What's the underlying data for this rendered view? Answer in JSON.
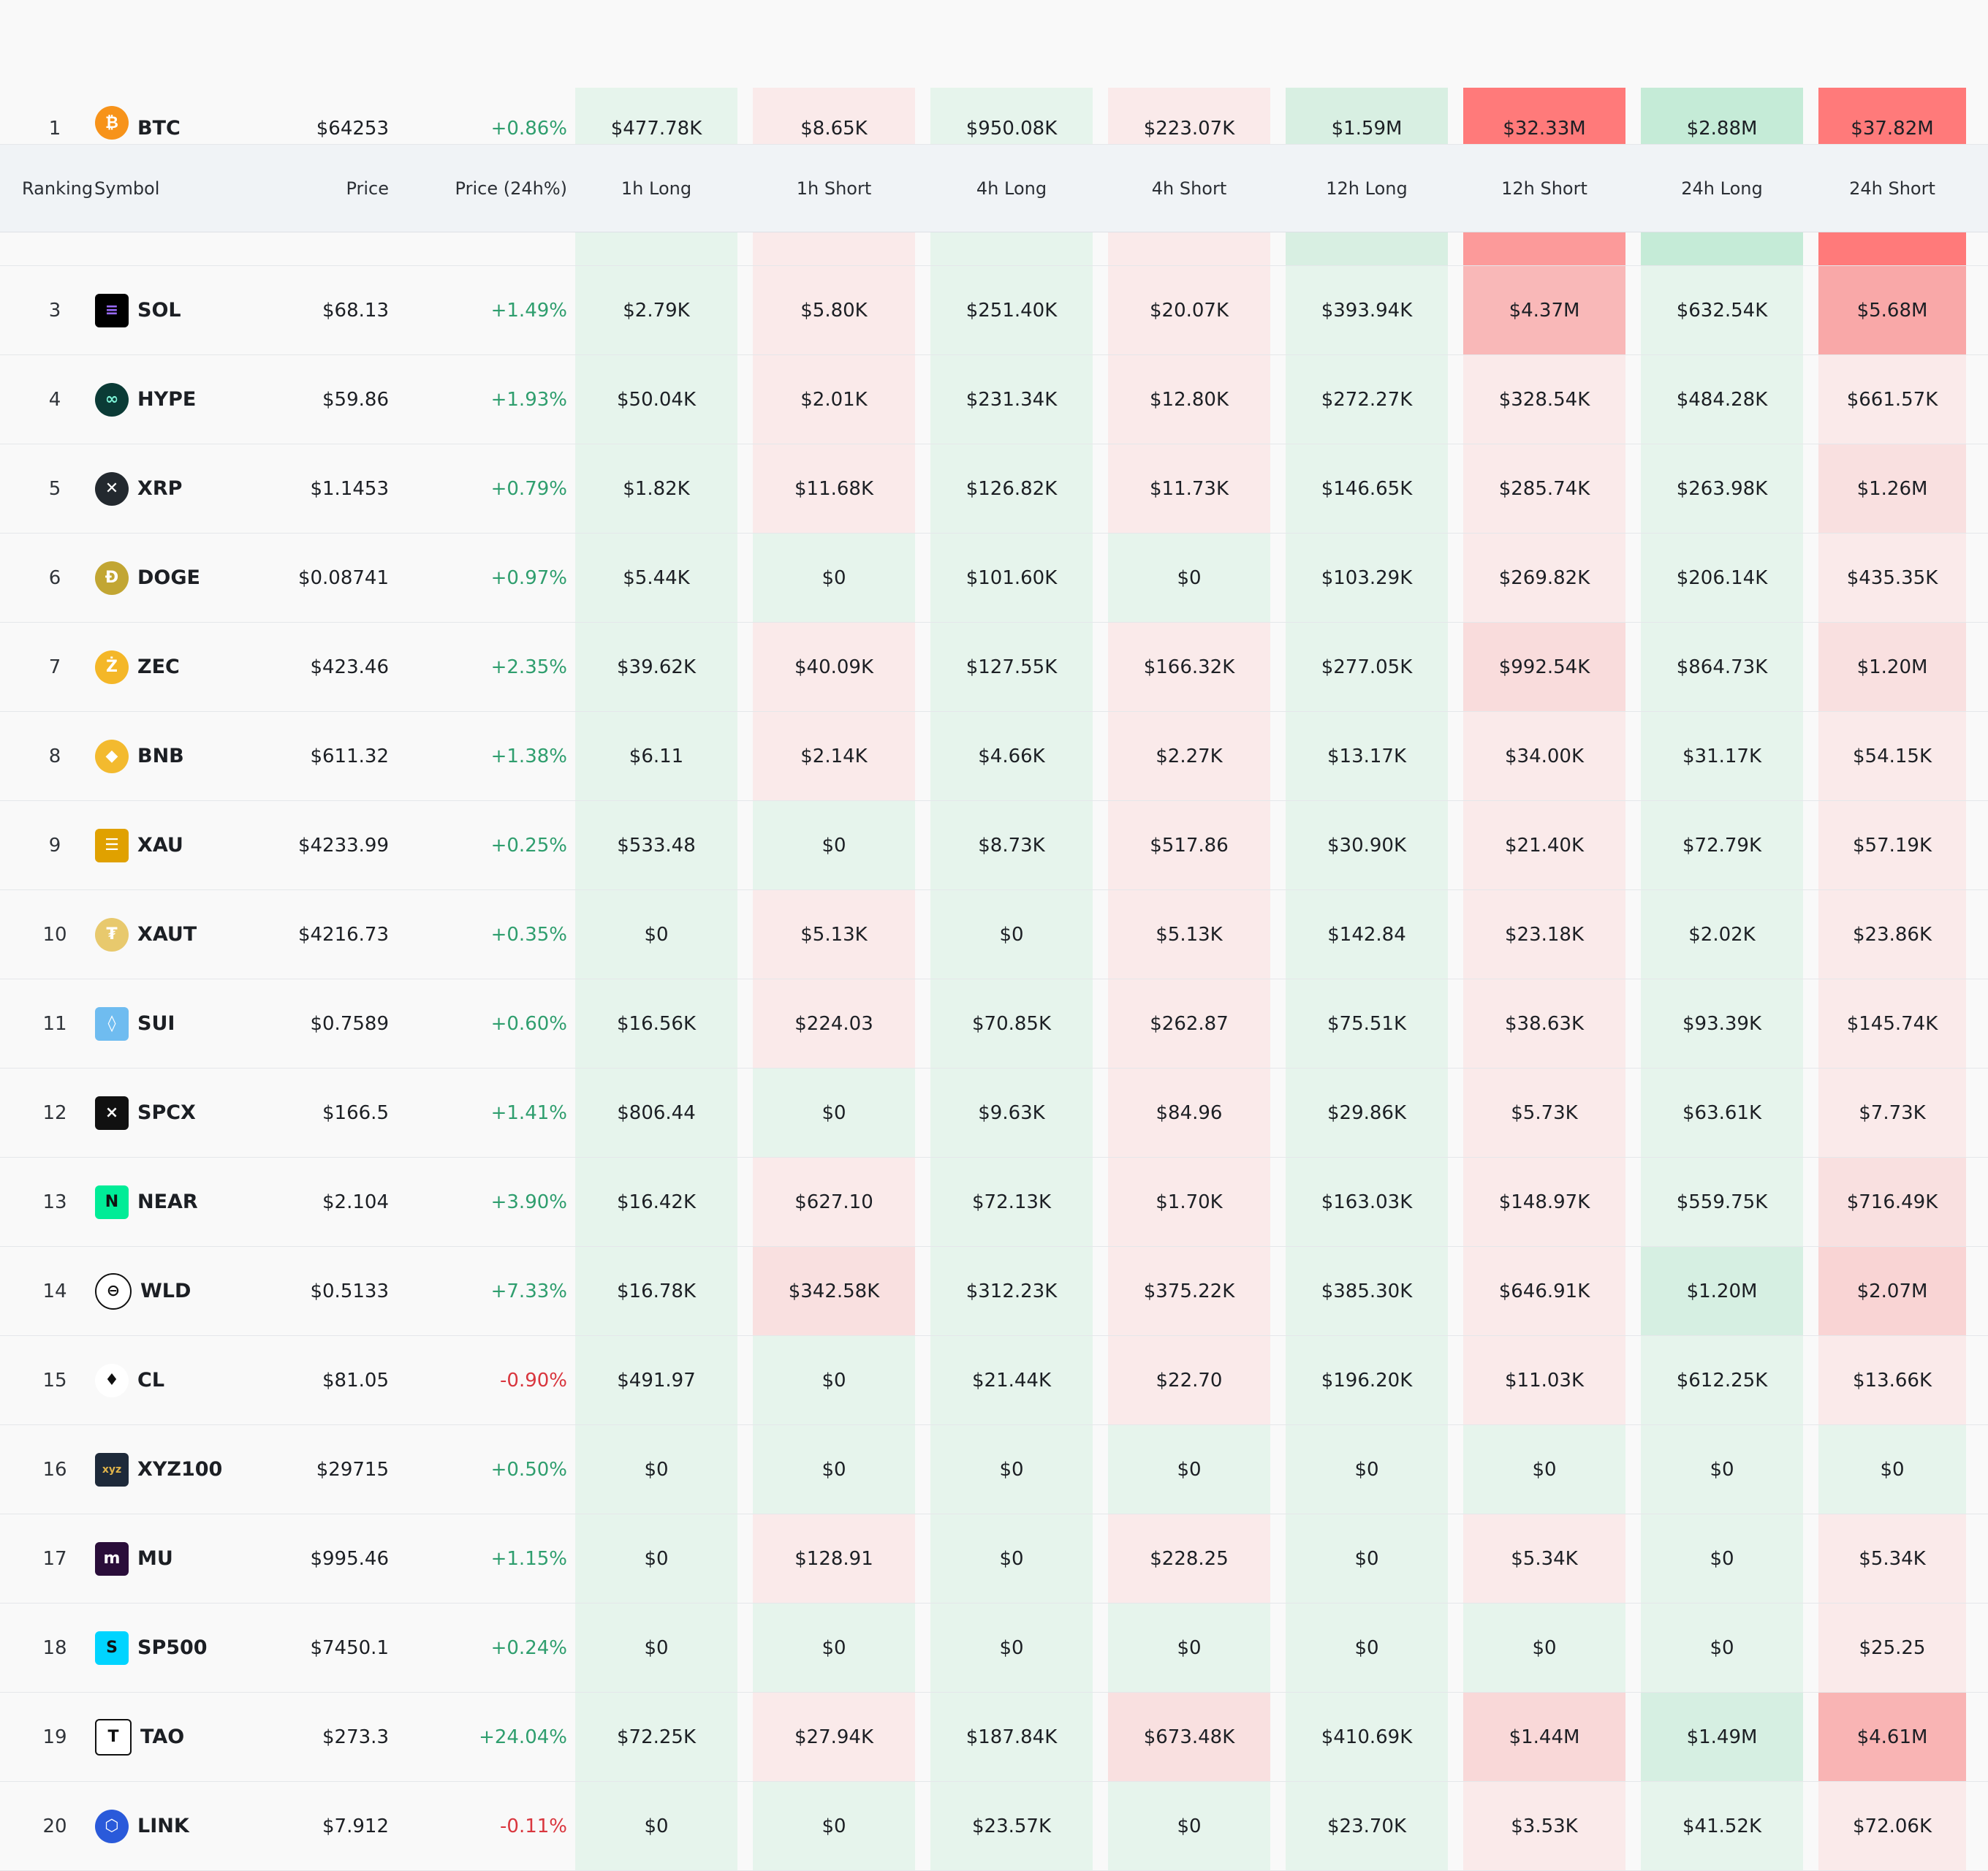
{
  "headers": {
    "ranking": "Ranking",
    "symbol": "Symbol",
    "price": "Price",
    "change": "Price (24h%)",
    "h1_long": "1h Long",
    "h1_short": "1h Short",
    "h4_long": "4h Long",
    "h4_short": "4h Short",
    "h12_long": "12h Long",
    "h12_short": "12h Short",
    "h24_long": "24h Long",
    "h24_short": "24h Short"
  },
  "rows": [
    {
      "rank": "1",
      "symbol": "BTC",
      "icon": "bitcoin-icon",
      "price": "$64253",
      "change": "+0.86%",
      "dir": "up",
      "values": [
        "$477.78K",
        "$8.65K",
        "$950.08K",
        "$223.07K",
        "$1.59M",
        "$32.33M",
        "$2.88M",
        "$37.82M"
      ]
    },
    {
      "rank": "3",
      "symbol": "SOL",
      "icon": "solana-icon",
      "price": "$68.13",
      "change": "+1.49%",
      "dir": "up",
      "values": [
        "$2.79K",
        "$5.80K",
        "$251.40K",
        "$20.07K",
        "$393.94K",
        "$4.37M",
        "$632.54K",
        "$5.68M"
      ]
    },
    {
      "rank": "4",
      "symbol": "HYPE",
      "icon": "hyperliquid-icon",
      "price": "$59.86",
      "change": "+1.93%",
      "dir": "up",
      "values": [
        "$50.04K",
        "$2.01K",
        "$231.34K",
        "$12.80K",
        "$272.27K",
        "$328.54K",
        "$484.28K",
        "$661.57K"
      ]
    },
    {
      "rank": "5",
      "symbol": "XRP",
      "icon": "xrp-icon",
      "price": "$1.1453",
      "change": "+0.79%",
      "dir": "up",
      "values": [
        "$1.82K",
        "$11.68K",
        "$126.82K",
        "$11.73K",
        "$146.65K",
        "$285.74K",
        "$263.98K",
        "$1.26M"
      ]
    },
    {
      "rank": "6",
      "symbol": "DOGE",
      "icon": "dogecoin-icon",
      "price": "$0.08741",
      "change": "+0.97%",
      "dir": "up",
      "values": [
        "$5.44K",
        "$0",
        "$101.60K",
        "$0",
        "$103.29K",
        "$269.82K",
        "$206.14K",
        "$435.35K"
      ]
    },
    {
      "rank": "7",
      "symbol": "ZEC",
      "icon": "zcash-icon",
      "price": "$423.46",
      "change": "+2.35%",
      "dir": "up",
      "values": [
        "$39.62K",
        "$40.09K",
        "$127.55K",
        "$166.32K",
        "$277.05K",
        "$992.54K",
        "$864.73K",
        "$1.20M"
      ]
    },
    {
      "rank": "8",
      "symbol": "BNB",
      "icon": "bnb-icon",
      "price": "$611.32",
      "change": "+1.38%",
      "dir": "up",
      "values": [
        "$6.11",
        "$2.14K",
        "$4.66K",
        "$2.27K",
        "$13.17K",
        "$34.00K",
        "$31.17K",
        "$54.15K"
      ]
    },
    {
      "rank": "9",
      "symbol": "XAU",
      "icon": "gold-bars-icon",
      "price": "$4233.99",
      "change": "+0.25%",
      "dir": "up",
      "values": [
        "$533.48",
        "$0",
        "$8.73K",
        "$517.86",
        "$30.90K",
        "$21.40K",
        "$72.79K",
        "$57.19K"
      ]
    },
    {
      "rank": "10",
      "symbol": "XAUT",
      "icon": "tether-gold-icon",
      "price": "$4216.73",
      "change": "+0.35%",
      "dir": "up",
      "values": [
        "$0",
        "$5.13K",
        "$0",
        "$5.13K",
        "$142.84",
        "$23.18K",
        "$2.02K",
        "$23.86K"
      ]
    },
    {
      "rank": "11",
      "symbol": "SUI",
      "icon": "sui-droplet-icon",
      "price": "$0.7589",
      "change": "+0.60%",
      "dir": "up",
      "values": [
        "$16.56K",
        "$224.03",
        "$70.85K",
        "$262.87",
        "$75.51K",
        "$38.63K",
        "$93.39K",
        "$145.74K"
      ]
    },
    {
      "rank": "12",
      "symbol": "SPCX",
      "icon": "spacex-icon",
      "price": "$166.5",
      "change": "+1.41%",
      "dir": "up",
      "values": [
        "$806.44",
        "$0",
        "$9.63K",
        "$84.96",
        "$29.86K",
        "$5.73K",
        "$63.61K",
        "$7.73K"
      ]
    },
    {
      "rank": "13",
      "symbol": "NEAR",
      "icon": "near-icon",
      "price": "$2.104",
      "change": "+3.90%",
      "dir": "up",
      "values": [
        "$16.42K",
        "$627.10",
        "$72.13K",
        "$1.70K",
        "$163.03K",
        "$148.97K",
        "$559.75K",
        "$716.49K"
      ]
    },
    {
      "rank": "14",
      "symbol": "WLD",
      "icon": "worldcoin-icon",
      "price": "$0.5133",
      "change": "+7.33%",
      "dir": "up",
      "values": [
        "$16.78K",
        "$342.58K",
        "$312.23K",
        "$375.22K",
        "$385.30K",
        "$646.91K",
        "$1.20M",
        "$2.07M"
      ]
    },
    {
      "rank": "15",
      "symbol": "CL",
      "icon": "oil-drop-icon",
      "price": "$81.05",
      "change": "-0.90%",
      "dir": "down",
      "values": [
        "$491.97",
        "$0",
        "$21.44K",
        "$22.70",
        "$196.20K",
        "$11.03K",
        "$612.25K",
        "$13.66K"
      ]
    },
    {
      "rank": "16",
      "symbol": "XYZ100",
      "icon": "xyz-icon",
      "price": "$29715",
      "change": "+0.50%",
      "dir": "up",
      "values": [
        "$0",
        "$0",
        "$0",
        "$0",
        "$0",
        "$0",
        "$0",
        "$0"
      ]
    },
    {
      "rank": "17",
      "symbol": "MU",
      "icon": "micron-icon",
      "price": "$995.46",
      "change": "+1.15%",
      "dir": "up",
      "values": [
        "$0",
        "$128.91",
        "$0",
        "$228.25",
        "$0",
        "$5.34K",
        "$0",
        "$5.34K"
      ]
    },
    {
      "rank": "18",
      "symbol": "SP500",
      "icon": "sp500-icon",
      "price": "$7450.1",
      "change": "+0.24%",
      "dir": "up",
      "values": [
        "$0",
        "$0",
        "$0",
        "$0",
        "$0",
        "$0",
        "$0",
        "$25.25"
      ]
    },
    {
      "rank": "19",
      "symbol": "TAO",
      "icon": "bittensor-icon",
      "price": "$273.3",
      "change": "+24.04%",
      "dir": "up",
      "values": [
        "$72.25K",
        "$27.94K",
        "$187.84K",
        "$673.48K",
        "$410.69K",
        "$1.44M",
        "$1.49M",
        "$4.61M"
      ]
    },
    {
      "rank": "20",
      "symbol": "LINK",
      "icon": "chainlink-icon",
      "price": "$7.912",
      "change": "-0.11%",
      "dir": "down",
      "values": [
        "$0",
        "$0",
        "$23.57K",
        "$0",
        "$23.70K",
        "$3.53K",
        "$41.52K",
        "$72.06K"
      ]
    }
  ],
  "cell_colors": [
    [
      "#e6f4ec",
      "#faeaea",
      "#e6f4ec",
      "#faeaea",
      "#d8efe2",
      "#ff7a7a",
      "#c5ebd7",
      "#ff7a7a"
    ],
    [
      "#e6f4ec",
      "#faeaea",
      "#e6f4ec",
      "#faeaea",
      "#e6f4ec",
      "#f9b8b8",
      "#e6f4ec",
      "#f9a8a8"
    ],
    [
      "#e6f4ec",
      "#faeaea",
      "#e6f4ec",
      "#faeaea",
      "#e6f4ec",
      "#faeaea",
      "#e6f4ec",
      "#faeaea"
    ],
    [
      "#e6f4ec",
      "#faeaea",
      "#e6f4ec",
      "#faeaea",
      "#e6f4ec",
      "#faeaea",
      "#e6f4ec",
      "#f9e0e0"
    ],
    [
      "#e6f4ec",
      "#e6f4ec",
      "#e6f4ec",
      "#e6f4ec",
      "#e6f4ec",
      "#faeaea",
      "#e6f4ec",
      "#faeaea"
    ],
    [
      "#e6f4ec",
      "#faeaea",
      "#e6f4ec",
      "#faeaea",
      "#e6f4ec",
      "#f9dcdc",
      "#e6f4ec",
      "#f9e0e0"
    ],
    [
      "#e6f4ec",
      "#faeaea",
      "#e6f4ec",
      "#faeaea",
      "#e6f4ec",
      "#faeaea",
      "#e6f4ec",
      "#faeaea"
    ],
    [
      "#e6f4ec",
      "#e6f4ec",
      "#e6f4ec",
      "#faeaea",
      "#e6f4ec",
      "#faeaea",
      "#e6f4ec",
      "#faeaea"
    ],
    [
      "#e6f4ec",
      "#faeaea",
      "#e6f4ec",
      "#faeaea",
      "#e6f4ec",
      "#faeaea",
      "#e6f4ec",
      "#faeaea"
    ],
    [
      "#e6f4ec",
      "#faeaea",
      "#e6f4ec",
      "#faeaea",
      "#e6f4ec",
      "#faeaea",
      "#e6f4ec",
      "#faeaea"
    ],
    [
      "#e6f4ec",
      "#e6f4ec",
      "#e6f4ec",
      "#faeaea",
      "#e6f4ec",
      "#faeaea",
      "#e6f4ec",
      "#faeaea"
    ],
    [
      "#e6f4ec",
      "#faeaea",
      "#e6f4ec",
      "#faeaea",
      "#e6f4ec",
      "#faeaea",
      "#e6f4ec",
      "#f9e0e0"
    ],
    [
      "#e6f4ec",
      "#f9e0e0",
      "#e6f4ec",
      "#faeaea",
      "#e6f4ec",
      "#faeaea",
      "#d6efe2",
      "#f9d4d4"
    ],
    [
      "#e6f4ec",
      "#e6f4ec",
      "#e6f4ec",
      "#faeaea",
      "#e6f4ec",
      "#faeaea",
      "#e6f4ec",
      "#faeaea"
    ],
    [
      "#e6f4ec",
      "#e6f4ec",
      "#e6f4ec",
      "#e6f4ec",
      "#e6f4ec",
      "#e6f4ec",
      "#e6f4ec",
      "#e6f4ec"
    ],
    [
      "#e6f4ec",
      "#faeaea",
      "#e6f4ec",
      "#faeaea",
      "#e6f4ec",
      "#faeaea",
      "#e6f4ec",
      "#faeaea"
    ],
    [
      "#e6f4ec",
      "#e6f4ec",
      "#e6f4ec",
      "#e6f4ec",
      "#e6f4ec",
      "#e6f4ec",
      "#e6f4ec",
      "#faeaea"
    ],
    [
      "#e6f4ec",
      "#faeaea",
      "#e6f4ec",
      "#f9e0e0",
      "#e6f4ec",
      "#f9d8d8",
      "#d6efe2",
      "#f9b4b4"
    ],
    [
      "#e6f4ec",
      "#e6f4ec",
      "#e6f4ec",
      "#e6f4ec",
      "#e6f4ec",
      "#faeaea",
      "#e6f4ec",
      "#faeaea"
    ]
  ],
  "partial_row_colors": [
    "#e6f4ec",
    "#faeaea",
    "#e6f4ec",
    "#faeaea",
    "#d8efe2",
    "#fc9a9a",
    "#c5ebd7",
    "#ff7a7a"
  ],
  "colors": {
    "positive": "#2f9e6e",
    "negative": "#d9363e",
    "header_bg": "#f0f3f6"
  }
}
